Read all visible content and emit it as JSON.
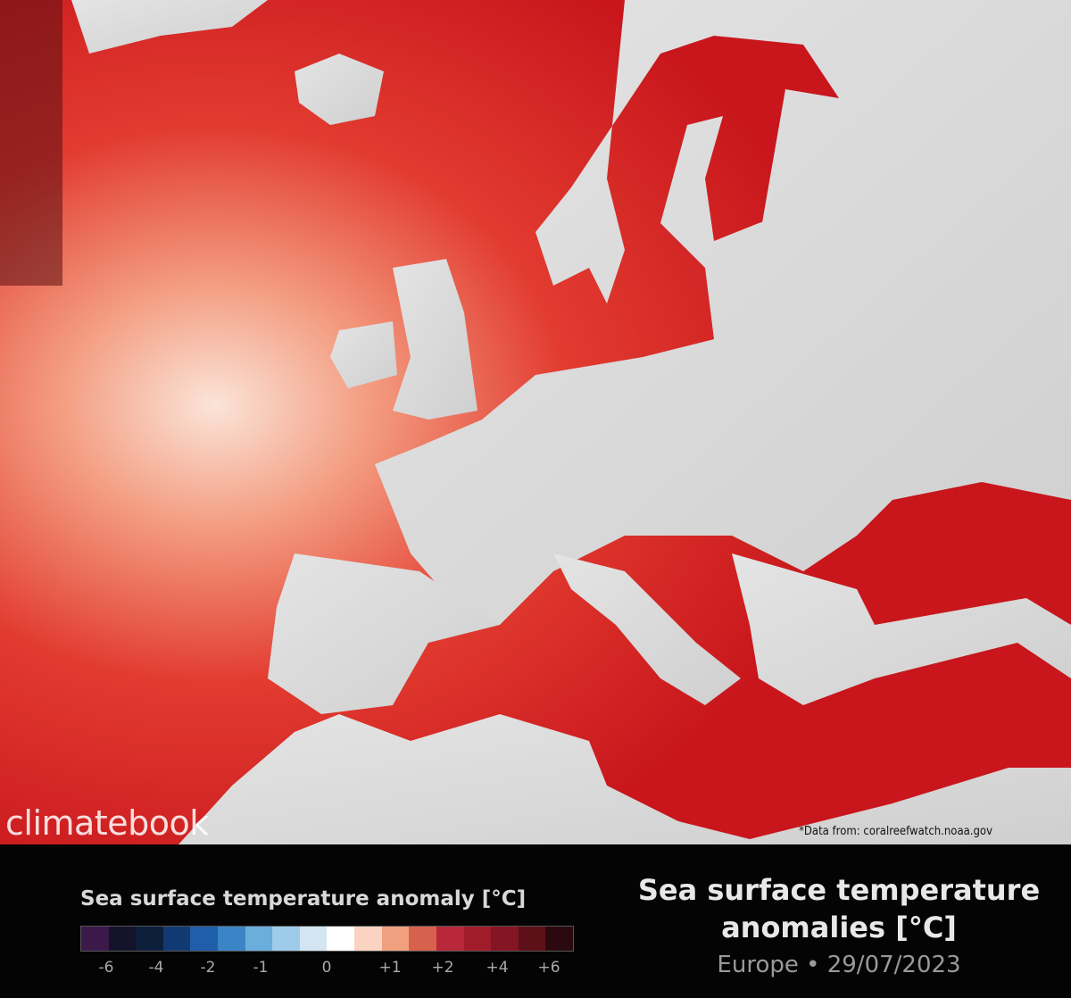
{
  "map": {
    "watermark": "climatebook",
    "source": "*Data from: coralreefwatch.noaa.gov"
  },
  "legend": {
    "title": "Sea surface temperature anomaly [°C]",
    "colors": [
      "#3b1a4a",
      "#15132a",
      "#0e1f3c",
      "#123a72",
      "#1f5ea8",
      "#3a85c5",
      "#6aaedc",
      "#9dcbe8",
      "#d2e5f1",
      "#ffffff",
      "#fbd3c2",
      "#f0a07e",
      "#d6614c",
      "#b8283a",
      "#a11c2a",
      "#841522",
      "#5e1019",
      "#2a0a0e"
    ],
    "labels": [
      "-6",
      "-4",
      "-2",
      "-1",
      "0",
      "+1",
      "+2",
      "+4",
      "+6"
    ]
  },
  "header": {
    "title": "Sea surface temperature anomalies [°C]",
    "subtitle": "Europe • 29/07/2023"
  }
}
